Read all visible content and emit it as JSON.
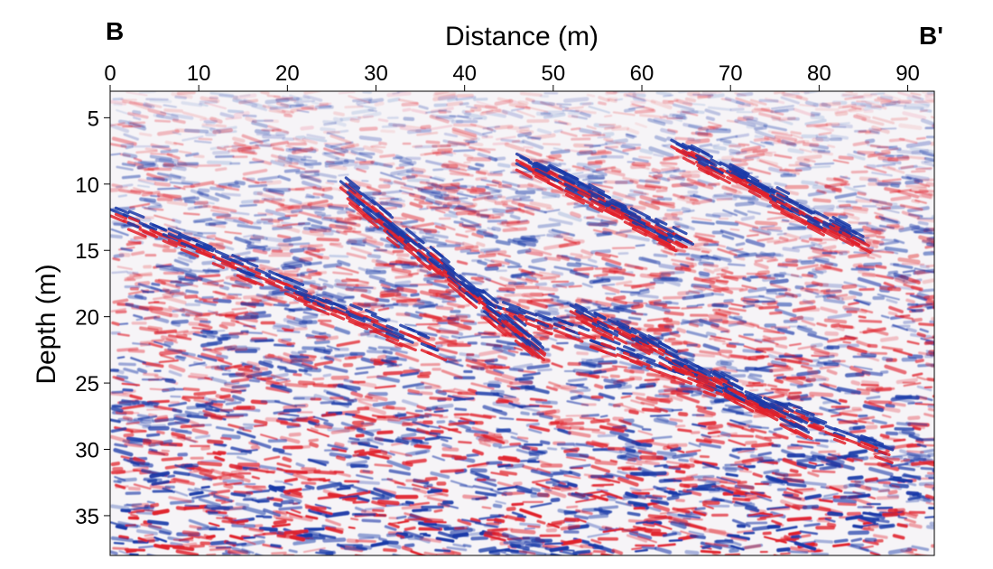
{
  "chart_data": {
    "type": "heatmap",
    "title": "",
    "xlabel": "Distance (m)",
    "ylabel": "Depth (m)",
    "xlim": [
      0,
      93
    ],
    "ylim": [
      38,
      3
    ],
    "x_ticks": [
      0,
      10,
      20,
      30,
      40,
      50,
      60,
      70,
      80,
      90
    ],
    "y_ticks": [
      5,
      10,
      15,
      20,
      25,
      30,
      35
    ],
    "x_axis_position": "top",
    "y_axis_reversed": true,
    "grid": false,
    "colormap": [
      "#1a3aa8",
      "#ffffff",
      "#e0202a"
    ],
    "profile_start_label": "B",
    "profile_end_label": "B'",
    "reflectors": [
      {
        "x": [
          40,
          88
        ],
        "y": [
          18,
          30
        ]
      },
      {
        "x": [
          46,
          64
        ],
        "y": [
          8,
          14
        ]
      },
      {
        "x": [
          26,
          48
        ],
        "y": [
          10,
          22
        ]
      },
      {
        "x": [
          0,
          36
        ],
        "y": [
          12,
          22
        ]
      },
      {
        "x": [
          64,
          84
        ],
        "y": [
          7,
          14
        ]
      },
      {
        "x": [
          52,
          78
        ],
        "y": [
          19,
          28
        ]
      }
    ]
  }
}
